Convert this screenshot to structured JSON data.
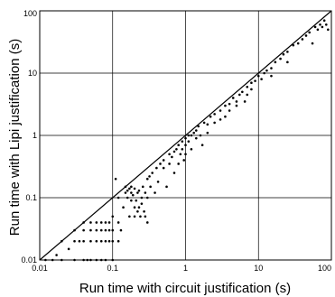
{
  "chart_data": {
    "type": "scatter",
    "xlabel": "Run time with circuit justification (s)",
    "ylabel": "Run time with Lipi justification (s)",
    "xscale": "log",
    "yscale": "log",
    "xlim": [
      0.01,
      100
    ],
    "ylim": [
      0.01,
      100
    ],
    "grid": true,
    "reference_line": "y = x",
    "x_ticks": [
      0.01,
      0.1,
      1,
      10,
      100
    ],
    "y_ticks": [
      0.01,
      0.1,
      1,
      10,
      100
    ],
    "x_tick_labels": [
      "0.01",
      "0.1",
      "1",
      "10",
      "100"
    ],
    "y_tick_labels": [
      "0.01",
      "0.1",
      "1",
      "10",
      "100"
    ],
    "points": [
      [
        0.012,
        0.01
      ],
      [
        0.015,
        0.01
      ],
      [
        0.017,
        0.012
      ],
      [
        0.02,
        0.02
      ],
      [
        0.02,
        0.01
      ],
      [
        0.025,
        0.015
      ],
      [
        0.03,
        0.01
      ],
      [
        0.03,
        0.02
      ],
      [
        0.03,
        0.03
      ],
      [
        0.035,
        0.02
      ],
      [
        0.04,
        0.01
      ],
      [
        0.04,
        0.02
      ],
      [
        0.04,
        0.03
      ],
      [
        0.04,
        0.04
      ],
      [
        0.045,
        0.01
      ],
      [
        0.05,
        0.01
      ],
      [
        0.05,
        0.02
      ],
      [
        0.05,
        0.03
      ],
      [
        0.05,
        0.04
      ],
      [
        0.06,
        0.01
      ],
      [
        0.06,
        0.02
      ],
      [
        0.06,
        0.03
      ],
      [
        0.06,
        0.04
      ],
      [
        0.07,
        0.01
      ],
      [
        0.07,
        0.02
      ],
      [
        0.07,
        0.03
      ],
      [
        0.07,
        0.04
      ],
      [
        0.08,
        0.01
      ],
      [
        0.08,
        0.02
      ],
      [
        0.08,
        0.03
      ],
      [
        0.08,
        0.04
      ],
      [
        0.09,
        0.02
      ],
      [
        0.09,
        0.03
      ],
      [
        0.09,
        0.04
      ],
      [
        0.1,
        0.01
      ],
      [
        0.1,
        0.02
      ],
      [
        0.1,
        0.03
      ],
      [
        0.1,
        0.05
      ],
      [
        0.11,
        0.2
      ],
      [
        0.12,
        0.1
      ],
      [
        0.12,
        0.04
      ],
      [
        0.12,
        0.02
      ],
      [
        0.13,
        0.03
      ],
      [
        0.14,
        0.07
      ],
      [
        0.15,
        0.12
      ],
      [
        0.15,
        0.15
      ],
      [
        0.16,
        0.1
      ],
      [
        0.16,
        0.13
      ],
      [
        0.17,
        0.14
      ],
      [
        0.17,
        0.05
      ],
      [
        0.18,
        0.12
      ],
      [
        0.18,
        0.15
      ],
      [
        0.18,
        0.09
      ],
      [
        0.19,
        0.11
      ],
      [
        0.2,
        0.14
      ],
      [
        0.2,
        0.07
      ],
      [
        0.2,
        0.05
      ],
      [
        0.21,
        0.09
      ],
      [
        0.22,
        0.12
      ],
      [
        0.22,
        0.06
      ],
      [
        0.23,
        0.07
      ],
      [
        0.23,
        0.13
      ],
      [
        0.24,
        0.05
      ],
      [
        0.25,
        0.08
      ],
      [
        0.25,
        0.1
      ],
      [
        0.26,
        0.15
      ],
      [
        0.27,
        0.06
      ],
      [
        0.28,
        0.05
      ],
      [
        0.28,
        0.12
      ],
      [
        0.3,
        0.2
      ],
      [
        0.3,
        0.1
      ],
      [
        0.3,
        0.04
      ],
      [
        0.32,
        0.22
      ],
      [
        0.33,
        0.15
      ],
      [
        0.35,
        0.25
      ],
      [
        0.38,
        0.12
      ],
      [
        0.4,
        0.3
      ],
      [
        0.42,
        0.18
      ],
      [
        0.45,
        0.35
      ],
      [
        0.5,
        0.3
      ],
      [
        0.5,
        0.4
      ],
      [
        0.55,
        0.15
      ],
      [
        0.6,
        0.5
      ],
      [
        0.6,
        0.35
      ],
      [
        0.65,
        0.45
      ],
      [
        0.7,
        0.55
      ],
      [
        0.7,
        0.25
      ],
      [
        0.75,
        0.6
      ],
      [
        0.8,
        0.7
      ],
      [
        0.8,
        0.35
      ],
      [
        0.85,
        0.5
      ],
      [
        0.9,
        0.8
      ],
      [
        0.9,
        0.6
      ],
      [
        0.95,
        0.4
      ],
      [
        1.0,
        0.9
      ],
      [
        1.0,
        0.7
      ],
      [
        1.0,
        0.5
      ],
      [
        1.1,
        1.0
      ],
      [
        1.1,
        0.8
      ],
      [
        1.2,
        1.0
      ],
      [
        1.2,
        0.6
      ],
      [
        1.3,
        1.1
      ],
      [
        1.4,
        1.2
      ],
      [
        1.4,
        0.9
      ],
      [
        1.5,
        1.4
      ],
      [
        1.6,
        1.0
      ],
      [
        1.7,
        0.7
      ],
      [
        1.8,
        1.6
      ],
      [
        2.0,
        1.5
      ],
      [
        2.0,
        1.1
      ],
      [
        2.2,
        2.0
      ],
      [
        2.5,
        1.6
      ],
      [
        2.5,
        2.2
      ],
      [
        3.0,
        2.5
      ],
      [
        3.0,
        1.8
      ],
      [
        3.5,
        3.0
      ],
      [
        3.5,
        2.0
      ],
      [
        4.0,
        3.2
      ],
      [
        4.0,
        2.5
      ],
      [
        4.5,
        4.0
      ],
      [
        5.0,
        3.5
      ],
      [
        5.0,
        3.0
      ],
      [
        5.5,
        4.5
      ],
      [
        6.0,
        5.0
      ],
      [
        6.5,
        3.5
      ],
      [
        7.0,
        6.0
      ],
      [
        7.0,
        4.5
      ],
      [
        8.0,
        7.0
      ],
      [
        8.0,
        5.5
      ],
      [
        9.0,
        7.5
      ],
      [
        10.0,
        9.0
      ],
      [
        11.0,
        8.0
      ],
      [
        12.0,
        10.0
      ],
      [
        13.0,
        11.0
      ],
      [
        15.0,
        12.0
      ],
      [
        15.0,
        9.0
      ],
      [
        17.0,
        15.0
      ],
      [
        20.0,
        17.0
      ],
      [
        22.0,
        20.0
      ],
      [
        25.0,
        22.0
      ],
      [
        25.0,
        15.0
      ],
      [
        30.0,
        28.0
      ],
      [
        35.0,
        30.0
      ],
      [
        40.0,
        35.0
      ],
      [
        45.0,
        40.0
      ],
      [
        50.0,
        45.0
      ],
      [
        55.0,
        30.0
      ],
      [
        60.0,
        55.0
      ],
      [
        65.0,
        50.0
      ],
      [
        70.0,
        60.0
      ],
      [
        75.0,
        55.0
      ],
      [
        80.0,
        70.0
      ],
      [
        85.0,
        60.0
      ],
      [
        90.0,
        50.0
      ]
    ]
  }
}
